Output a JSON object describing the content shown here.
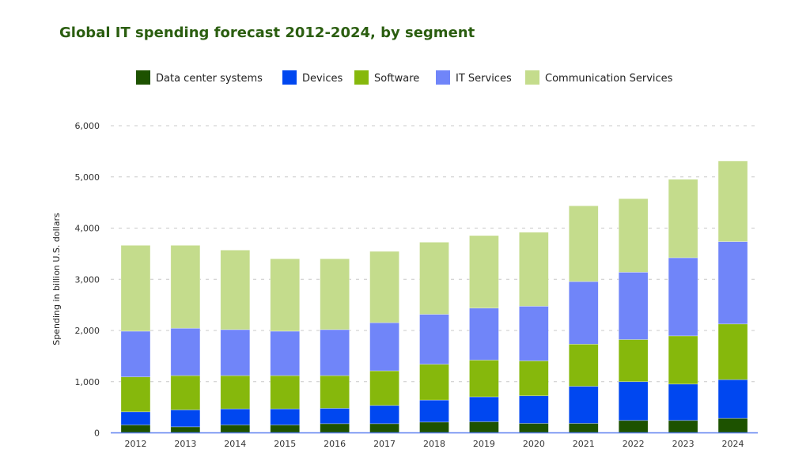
{
  "chart_data": {
    "type": "bar",
    "stacked": true,
    "title": "Global IT spending forecast 2012-2024, by segment",
    "xlabel": "",
    "ylabel": "Spending in billion U.S. dollars",
    "ylim": [
      0,
      6000
    ],
    "yticks": [
      0,
      1000,
      2000,
      3000,
      4000,
      5000,
      6000
    ],
    "ytick_labels": [
      "0",
      "1,000",
      "2,000",
      "3,000",
      "4,000",
      "5,000",
      "6,000"
    ],
    "grid": true,
    "legend_position": "top-center",
    "categories": [
      "2012",
      "2013",
      "2014",
      "2015",
      "2016",
      "2017",
      "2018",
      "2019",
      "2020",
      "2021",
      "2022",
      "2023",
      "2024"
    ],
    "series": [
      {
        "name": "Data center systems",
        "color": "#1d5200",
        "values": [
          155,
          118,
          155,
          155,
          180,
          180,
          211,
          217,
          186,
          186,
          243,
          243,
          284
        ]
      },
      {
        "name": "Devices",
        "color": "#0047f0",
        "values": [
          257,
          331,
          314,
          314,
          300,
          356,
          429,
          486,
          538,
          724,
          757,
          710,
          756
        ]
      },
      {
        "name": "Software",
        "color": "#86b80c",
        "values": [
          681,
          670,
          650,
          650,
          639,
          676,
          700,
          719,
          683,
          823,
          823,
          941,
          1087
        ]
      },
      {
        "name": "IT Services",
        "color": "#7085f9",
        "values": [
          893,
          924,
          898,
          867,
          898,
          940,
          976,
          1015,
          1067,
          1222,
          1315,
          1527,
          1609
        ]
      },
      {
        "name": "Communication Services",
        "color": "#c4dc8c",
        "values": [
          1677,
          1620,
          1553,
          1414,
          1383,
          1393,
          1408,
          1417,
          1445,
          1480,
          1436,
          1532,
          1574
        ]
      }
    ]
  },
  "colors": {
    "title": "#2b5e10",
    "axis": "#5b7ff0",
    "grid": "#c8c8c8"
  }
}
